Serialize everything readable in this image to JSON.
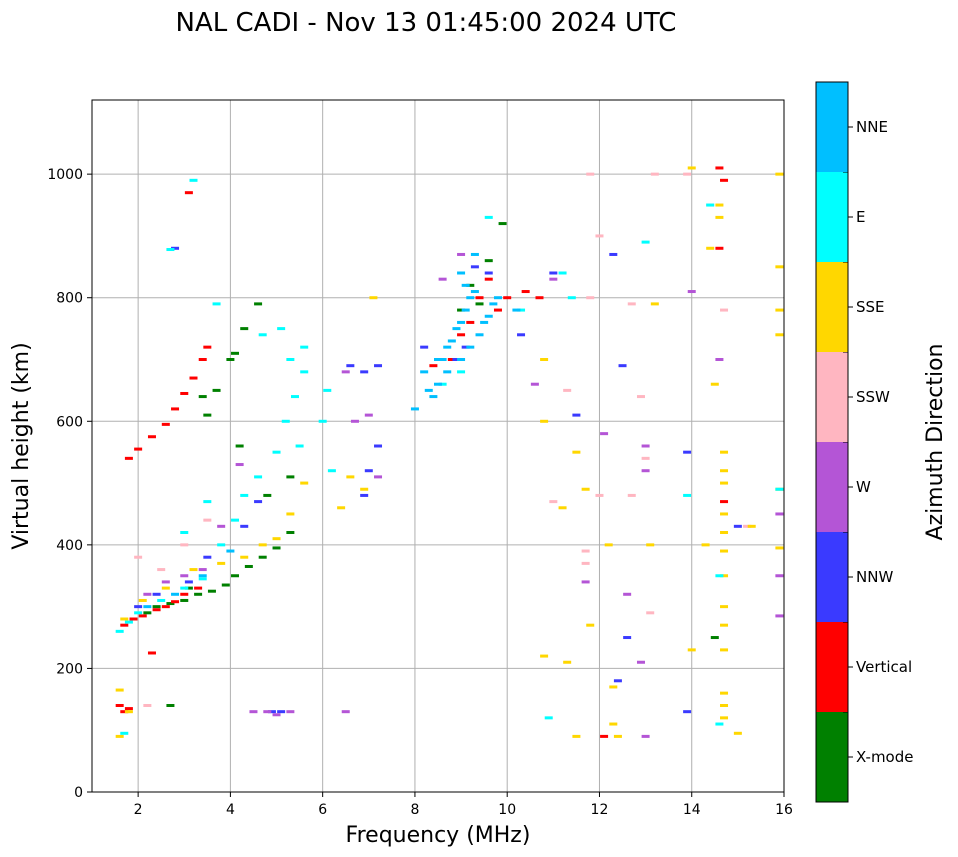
{
  "chart_data": {
    "type": "scatter",
    "title": "NAL CADI - Nov 13 01:45:00 2024 UTC",
    "xlabel": "Frequency (MHz)",
    "ylabel": "Virtual height (km)",
    "xlim": [
      1,
      16
    ],
    "ylim": [
      0,
      1120
    ],
    "xticks": [
      2,
      4,
      6,
      8,
      10,
      12,
      14,
      16
    ],
    "yticks": [
      0,
      200,
      400,
      600,
      800,
      1000
    ],
    "grid": true,
    "colorbar": {
      "label": "Azimuth Direction",
      "categories": [
        "X-mode",
        "Vertical",
        "NNW",
        "W",
        "SSW",
        "SSE",
        "E",
        "NNE"
      ],
      "colors": [
        "#008000",
        "#ff0000",
        "#3a3aff",
        "#b455d6",
        "#ffb6c1",
        "#ffd700",
        "#00ffff",
        "#00bfff"
      ]
    },
    "series": [
      {
        "name": "X-mode",
        "points": [
          [
            2.2,
            290
          ],
          [
            2.4,
            300
          ],
          [
            2.7,
            305
          ],
          [
            3.0,
            310
          ],
          [
            3.3,
            320
          ],
          [
            3.6,
            325
          ],
          [
            3.9,
            335
          ],
          [
            4.1,
            350
          ],
          [
            4.4,
            365
          ],
          [
            4.7,
            380
          ],
          [
            5.0,
            395
          ],
          [
            5.3,
            420
          ],
          [
            3.1,
            330
          ],
          [
            3.7,
            650
          ],
          [
            3.4,
            640
          ],
          [
            4.0,
            700
          ],
          [
            4.1,
            710
          ],
          [
            4.3,
            750
          ],
          [
            4.6,
            790
          ],
          [
            4.8,
            480
          ],
          [
            5.3,
            510
          ],
          [
            2.7,
            140
          ],
          [
            9.2,
            820
          ],
          [
            9.0,
            780
          ],
          [
            9.4,
            790
          ],
          [
            9.6,
            860
          ],
          [
            9.9,
            920
          ],
          [
            14.5,
            250
          ],
          [
            4.2,
            560
          ],
          [
            3.5,
            610
          ]
        ]
      },
      {
        "name": "Vertical",
        "points": [
          [
            1.7,
            270
          ],
          [
            1.9,
            280
          ],
          [
            2.1,
            285
          ],
          [
            2.4,
            295
          ],
          [
            2.6,
            300
          ],
          [
            2.8,
            308
          ],
          [
            3.0,
            320
          ],
          [
            3.3,
            330
          ],
          [
            1.8,
            540
          ],
          [
            2.0,
            555
          ],
          [
            2.3,
            575
          ],
          [
            2.6,
            595
          ],
          [
            2.8,
            620
          ],
          [
            3.0,
            645
          ],
          [
            3.2,
            670
          ],
          [
            3.4,
            700
          ],
          [
            3.5,
            720
          ],
          [
            1.6,
            140
          ],
          [
            1.7,
            130
          ],
          [
            1.8,
            135
          ],
          [
            3.1,
            970
          ],
          [
            8.4,
            690
          ],
          [
            8.8,
            700
          ],
          [
            9.0,
            740
          ],
          [
            9.2,
            760
          ],
          [
            9.4,
            800
          ],
          [
            9.6,
            830
          ],
          [
            9.8,
            780
          ],
          [
            10.0,
            800
          ],
          [
            10.4,
            810
          ],
          [
            10.7,
            800
          ],
          [
            14.6,
            1010
          ],
          [
            14.6,
            880
          ],
          [
            14.7,
            990
          ],
          [
            14.7,
            470
          ],
          [
            12.1,
            90
          ],
          [
            2.3,
            225
          ]
        ]
      },
      {
        "name": "NNW",
        "points": [
          [
            2.0,
            300
          ],
          [
            2.4,
            320
          ],
          [
            3.1,
            340
          ],
          [
            3.5,
            380
          ],
          [
            4.3,
            430
          ],
          [
            4.6,
            470
          ],
          [
            4.9,
            130
          ],
          [
            5.1,
            130
          ],
          [
            6.6,
            690
          ],
          [
            6.9,
            680
          ],
          [
            7.2,
            690
          ],
          [
            7.0,
            520
          ],
          [
            7.2,
            560
          ],
          [
            6.9,
            480
          ],
          [
            8.9,
            700
          ],
          [
            9.1,
            720
          ],
          [
            9.3,
            850
          ],
          [
            9.6,
            840
          ],
          [
            10.3,
            740
          ],
          [
            11.0,
            840
          ],
          [
            11.5,
            610
          ],
          [
            12.3,
            870
          ],
          [
            12.5,
            690
          ],
          [
            12.6,
            250
          ],
          [
            12.4,
            180
          ],
          [
            13.9,
            550
          ],
          [
            13.9,
            130
          ],
          [
            15.0,
            430
          ],
          [
            2.8,
            880
          ],
          [
            8.2,
            720
          ]
        ]
      },
      {
        "name": "W",
        "points": [
          [
            2.2,
            320
          ],
          [
            2.6,
            340
          ],
          [
            3.0,
            350
          ],
          [
            3.4,
            360
          ],
          [
            3.8,
            430
          ],
          [
            4.2,
            530
          ],
          [
            4.5,
            130
          ],
          [
            4.8,
            130
          ],
          [
            5.0,
            125
          ],
          [
            5.3,
            130
          ],
          [
            6.5,
            130
          ],
          [
            6.5,
            680
          ],
          [
            6.7,
            600
          ],
          [
            7.0,
            610
          ],
          [
            7.2,
            510
          ],
          [
            8.6,
            830
          ],
          [
            9.0,
            870
          ],
          [
            10.6,
            660
          ],
          [
            11.0,
            830
          ],
          [
            11.7,
            340
          ],
          [
            12.1,
            580
          ],
          [
            12.6,
            320
          ],
          [
            13.0,
            560
          ],
          [
            13.0,
            520
          ],
          [
            14.0,
            810
          ],
          [
            14.6,
            700
          ],
          [
            15.9,
            450
          ],
          [
            15.9,
            350
          ],
          [
            15.9,
            285
          ],
          [
            12.9,
            210
          ],
          [
            13.0,
            90
          ]
        ]
      },
      {
        "name": "SSW",
        "points": [
          [
            2.0,
            380
          ],
          [
            2.5,
            360
          ],
          [
            3.0,
            400
          ],
          [
            3.5,
            440
          ],
          [
            2.2,
            140
          ],
          [
            11.0,
            470
          ],
          [
            11.3,
            650
          ],
          [
            11.7,
            390
          ],
          [
            11.7,
            370
          ],
          [
            12.0,
            480
          ],
          [
            12.7,
            480
          ],
          [
            12.9,
            640
          ],
          [
            13.0,
            540
          ],
          [
            13.1,
            290
          ],
          [
            12.7,
            790
          ],
          [
            11.8,
            800
          ],
          [
            11.8,
            1000
          ],
          [
            12.0,
            900
          ],
          [
            14.4,
            950
          ],
          [
            14.7,
            780
          ],
          [
            15.2,
            430
          ],
          [
            13.9,
            1000
          ],
          [
            13.2,
            1000
          ]
        ]
      },
      {
        "name": "SSE",
        "points": [
          [
            1.7,
            280
          ],
          [
            2.1,
            310
          ],
          [
            2.6,
            330
          ],
          [
            3.2,
            360
          ],
          [
            3.8,
            370
          ],
          [
            4.3,
            380
          ],
          [
            4.7,
            400
          ],
          [
            5.0,
            410
          ],
          [
            5.3,
            450
          ],
          [
            5.6,
            500
          ],
          [
            6.4,
            460
          ],
          [
            6.6,
            510
          ],
          [
            6.9,
            490
          ],
          [
            7.1,
            800
          ],
          [
            1.6,
            165
          ],
          [
            1.8,
            130
          ],
          [
            1.6,
            90
          ],
          [
            10.8,
            700
          ],
          [
            10.8,
            600
          ],
          [
            10.8,
            220
          ],
          [
            11.2,
            460
          ],
          [
            11.3,
            210
          ],
          [
            11.5,
            550
          ],
          [
            11.7,
            490
          ],
          [
            11.8,
            270
          ],
          [
            11.5,
            90
          ],
          [
            12.2,
            400
          ],
          [
            12.3,
            170
          ],
          [
            12.3,
            110
          ],
          [
            12.4,
            90
          ],
          [
            13.1,
            400
          ],
          [
            13.2,
            790
          ],
          [
            14.0,
            1010
          ],
          [
            14.4,
            880
          ],
          [
            14.5,
            660
          ],
          [
            14.6,
            950
          ],
          [
            14.6,
            930
          ],
          [
            14.7,
            550
          ],
          [
            14.7,
            520
          ],
          [
            14.7,
            500
          ],
          [
            14.7,
            450
          ],
          [
            14.7,
            420
          ],
          [
            14.7,
            390
          ],
          [
            14.7,
            350
          ],
          [
            14.7,
            300
          ],
          [
            14.7,
            270
          ],
          [
            14.7,
            230
          ],
          [
            14.7,
            160
          ],
          [
            14.7,
            140
          ],
          [
            14.7,
            120
          ],
          [
            15.0,
            95
          ],
          [
            15.3,
            430
          ],
          [
            15.9,
            850
          ],
          [
            15.9,
            780
          ],
          [
            15.9,
            740
          ],
          [
            15.9,
            1000
          ],
          [
            15.9,
            490
          ],
          [
            15.9,
            395
          ],
          [
            14.3,
            400
          ],
          [
            14.0,
            230
          ]
        ]
      },
      {
        "name": "E",
        "points": [
          [
            1.6,
            260
          ],
          [
            1.8,
            275
          ],
          [
            2.0,
            290
          ],
          [
            2.5,
            310
          ],
          [
            3.0,
            330
          ],
          [
            3.4,
            345
          ],
          [
            3.8,
            400
          ],
          [
            4.1,
            440
          ],
          [
            4.3,
            480
          ],
          [
            4.6,
            510
          ],
          [
            5.0,
            550
          ],
          [
            5.2,
            600
          ],
          [
            5.4,
            640
          ],
          [
            5.6,
            680
          ],
          [
            5.1,
            750
          ],
          [
            5.3,
            700
          ],
          [
            5.5,
            560
          ],
          [
            3.0,
            420
          ],
          [
            3.5,
            470
          ],
          [
            6.1,
            650
          ],
          [
            6.0,
            600
          ],
          [
            6.2,
            520
          ],
          [
            1.7,
            95
          ],
          [
            2.7,
            878
          ],
          [
            3.7,
            790
          ],
          [
            3.2,
            990
          ],
          [
            4.7,
            740
          ],
          [
            5.6,
            720
          ],
          [
            9.6,
            930
          ],
          [
            10.3,
            780
          ],
          [
            10.9,
            120
          ],
          [
            11.2,
            840
          ],
          [
            11.4,
            800
          ],
          [
            13.0,
            890
          ],
          [
            13.9,
            480
          ],
          [
            14.4,
            950
          ],
          [
            14.6,
            350
          ],
          [
            14.6,
            110
          ],
          [
            15.9,
            490
          ],
          [
            9.0,
            680
          ],
          [
            8.6,
            660
          ]
        ]
      },
      {
        "name": "NNE",
        "points": [
          [
            8.4,
            640
          ],
          [
            8.5,
            660
          ],
          [
            8.6,
            700
          ],
          [
            8.7,
            720
          ],
          [
            8.8,
            730
          ],
          [
            8.9,
            750
          ],
          [
            9.0,
            760
          ],
          [
            9.1,
            780
          ],
          [
            9.2,
            800
          ],
          [
            9.3,
            810
          ],
          [
            9.0,
            700
          ],
          [
            9.2,
            720
          ],
          [
            9.4,
            740
          ],
          [
            9.5,
            760
          ],
          [
            9.6,
            770
          ],
          [
            9.7,
            790
          ],
          [
            8.0,
            620
          ],
          [
            8.2,
            680
          ],
          [
            8.3,
            650
          ],
          [
            9.0,
            840
          ],
          [
            9.3,
            870
          ],
          [
            9.8,
            800
          ],
          [
            10.2,
            780
          ],
          [
            2.2,
            300
          ],
          [
            2.8,
            320
          ],
          [
            3.4,
            350
          ],
          [
            4.0,
            390
          ],
          [
            8.5,
            700
          ],
          [
            8.7,
            680
          ],
          [
            9.1,
            820
          ]
        ]
      }
    ]
  }
}
